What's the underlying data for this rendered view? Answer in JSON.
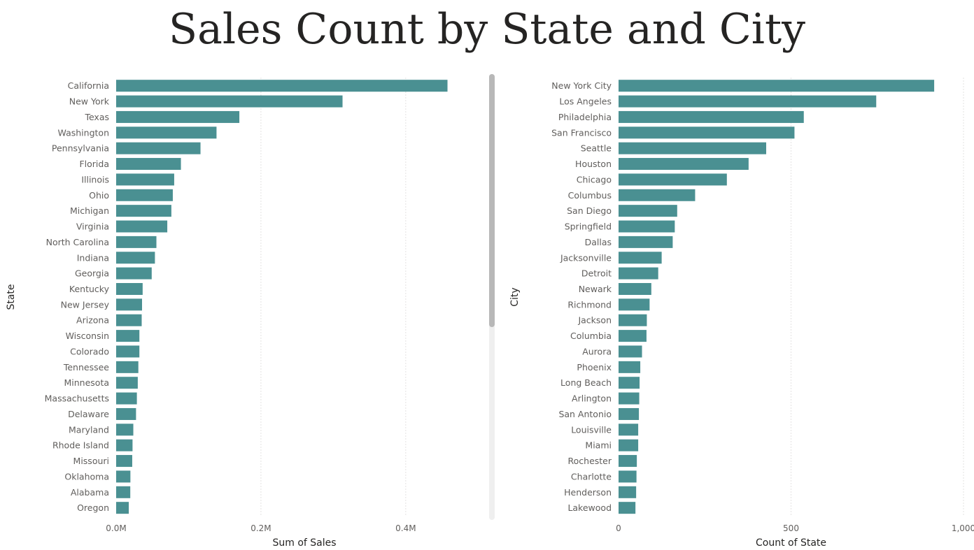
{
  "page": {
    "title": "Sales Count by State and City"
  },
  "chart_data": [
    {
      "type": "bar",
      "orientation": "horizontal",
      "categories": [
        "California",
        "New York",
        "Texas",
        "Washington",
        "Pennsylvania",
        "Florida",
        "Illinois",
        "Ohio",
        "Michigan",
        "Virginia",
        "North Carolina",
        "Indiana",
        "Georgia",
        "Kentucky",
        "New Jersey",
        "Arizona",
        "Wisconsin",
        "Colorado",
        "Tennessee",
        "Minnesota",
        "Massachusetts",
        "Delaware",
        "Maryland",
        "Rhode Island",
        "Missouri",
        "Oklahoma",
        "Alabama",
        "Oregon"
      ],
      "values": [
        457688,
        312710,
        170188,
        138641,
        116512,
        89474,
        80166,
        78258,
        76270,
        70637,
        55603,
        53555,
        49096,
        36592,
        35764,
        35282,
        32115,
        32108,
        30662,
        29863,
        28634,
        27451,
        23706,
        22628,
        22205,
        19683,
        19511,
        17431
      ],
      "xlabel": "Sum of Sales",
      "ylabel": "State",
      "xlim": [
        0,
        520000
      ],
      "xticks": [
        0,
        200000,
        400000
      ],
      "xtick_labels": [
        "0.0M",
        "0.2M",
        "0.4M"
      ],
      "grid": true,
      "color": "#4a9092"
    },
    {
      "type": "bar",
      "orientation": "horizontal",
      "categories": [
        "New York City",
        "Los Angeles",
        "Philadelphia",
        "San Francisco",
        "Seattle",
        "Houston",
        "Chicago",
        "Columbus",
        "San Diego",
        "Springfield",
        "Dallas",
        "Jacksonville",
        "Detroit",
        "Newark",
        "Richmond",
        "Jackson",
        "Columbia",
        "Aurora",
        "Phoenix",
        "Long Beach",
        "Arlington",
        "San Antonio",
        "Louisville",
        "Miami",
        "Rochester",
        "Charlotte",
        "Henderson",
        "Lakewood"
      ],
      "values": [
        915,
        747,
        537,
        510,
        428,
        377,
        314,
        222,
        170,
        163,
        157,
        125,
        115,
        95,
        90,
        82,
        81,
        68,
        63,
        61,
        60,
        59,
        57,
        57,
        53,
        52,
        51,
        49
      ],
      "xlabel": "Count of State",
      "ylabel": "City",
      "xlim": [
        0,
        1000
      ],
      "xticks": [
        0,
        500,
        1000
      ],
      "xtick_labels": [
        "0",
        "500",
        "1,000"
      ],
      "grid": true,
      "color": "#4a9092"
    }
  ]
}
